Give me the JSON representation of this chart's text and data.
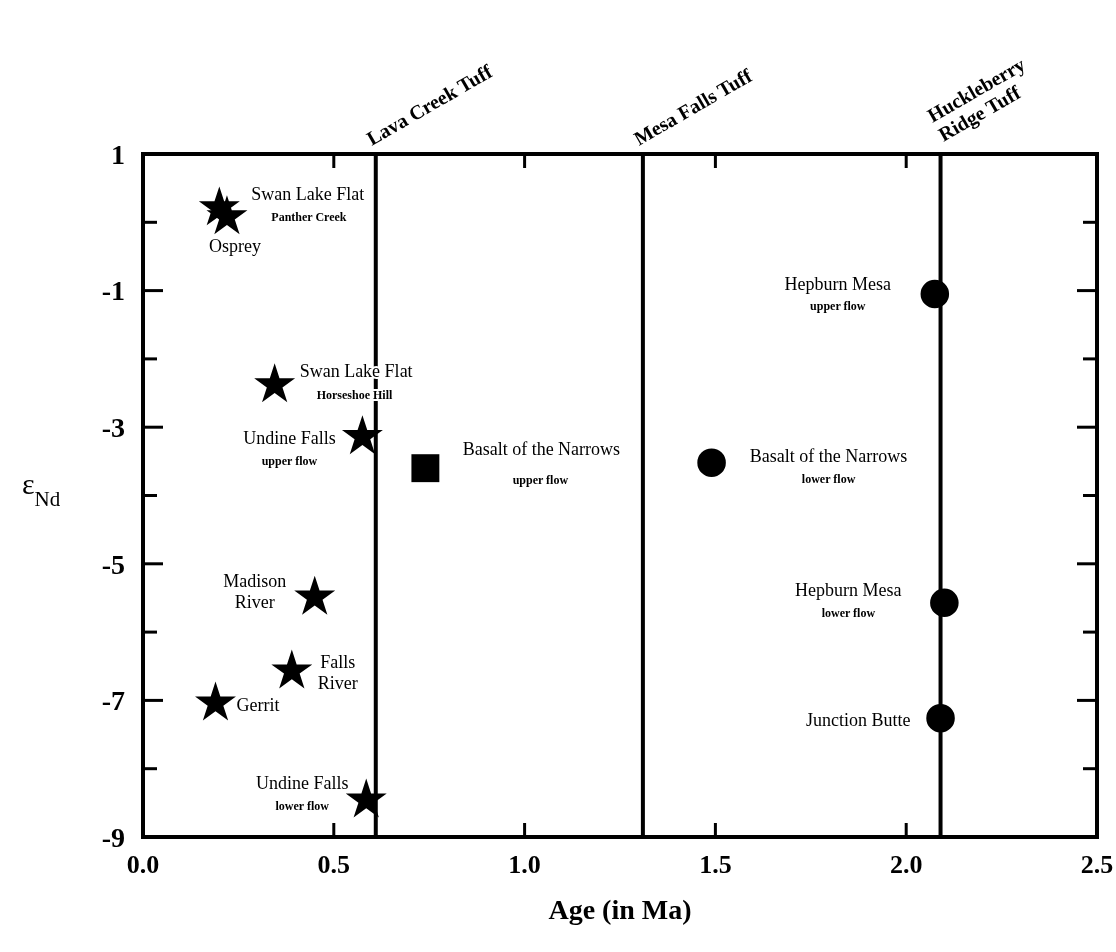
{
  "chart_data": {
    "type": "scatter",
    "xlabel": "Age (in Ma)",
    "ylabel": "ε$_{Nd}$",
    "xlim": [
      0,
      2.5
    ],
    "ylim": [
      -9,
      1
    ],
    "xticks": [
      {
        "value": 0,
        "label": "0.0"
      },
      0.5,
      {
        "value": 1,
        "label": "1.0"
      },
      1.5,
      {
        "value": 2,
        "label": "2.0"
      },
      2.5
    ],
    "yticks": [
      1,
      {
        "value": 0,
        "label": null
      },
      -1,
      {
        "value": -2,
        "label": null
      },
      -3,
      {
        "value": -4,
        "label": null
      },
      -5,
      {
        "value": -6,
        "label": null
      },
      -7,
      {
        "value": -8,
        "label": null
      },
      -9
    ],
    "grid": false,
    "series": [
      {
        "color": "#000000",
        "marker": "star",
        "x": [
          0.2,
          0.22,
          0.345,
          0.575,
          0.45,
          0.39,
          0.19,
          0.585
        ],
        "values": [
          0.21,
          0.08,
          -2.38,
          -3.14,
          -5.49,
          -6.57,
          -7.04,
          -8.46
        ]
      },
      {
        "color": "#000000",
        "marker": "square",
        "x": [
          0.74
        ],
        "values": [
          -3.6
        ]
      },
      {
        "color": "#000000",
        "marker": "circle",
        "x": [
          2.075,
          1.49,
          2.1,
          2.09
        ],
        "values": [
          -1.05,
          -3.52,
          -5.57,
          -7.26
        ]
      }
    ],
    "ref_lines": [
      {
        "axis": "x",
        "value": 0.61,
        "label": "Lava Creek Tuff",
        "color": "#000000"
      },
      {
        "axis": "x",
        "value": 1.31,
        "label": "Mesa Falls Tuff",
        "color": "#000000"
      },
      {
        "axis": "x",
        "value": 2.09,
        "label": "Huckleberry Ridge Tuff",
        "color": "#000000"
      }
    ],
    "annotations": [
      {
        "text": "Swan Lake Flat",
        "x": 0.2,
        "y": 0.21
      },
      "Panther Creek",
      {
        "text": "Osprey",
        "x": 0.22,
        "y": 0.08
      },
      {
        "text": "Swan Lake Flat",
        "x": 0.345,
        "y": -2.38
      },
      "Horseshoe Hill",
      {
        "text": "Undine Falls",
        "x": 0.575,
        "y": -3.14
      },
      "upper flow",
      {
        "text": "Basalt of the Narrows",
        "x": 0.74,
        "y": -3.6
      },
      "upper flow",
      {
        "text": "Madison River",
        "x": 0.45,
        "y": -5.49
      },
      {
        "text": "Falls River",
        "x": 0.39,
        "y": -6.57
      },
      {
        "text": "Gerrit",
        "x": 0.19,
        "y": -7.04
      },
      {
        "text": "Undine Falls",
        "x": 0.585,
        "y": -8.46
      },
      "lower flow",
      {
        "text": "Hepburn Mesa",
        "x": 2.075,
        "y": -1.05
      },
      "upper flow",
      {
        "text": "Basalt of the Narrows",
        "x": 1.49,
        "y": -3.52
      },
      "lower flow",
      {
        "text": "Hepburn Mesa",
        "x": 2.1,
        "y": -5.57
      },
      "lower flow",
      {
        "text": "Junction Butte",
        "x": 2.09,
        "y": -7.26
      }
    ]
  }
}
